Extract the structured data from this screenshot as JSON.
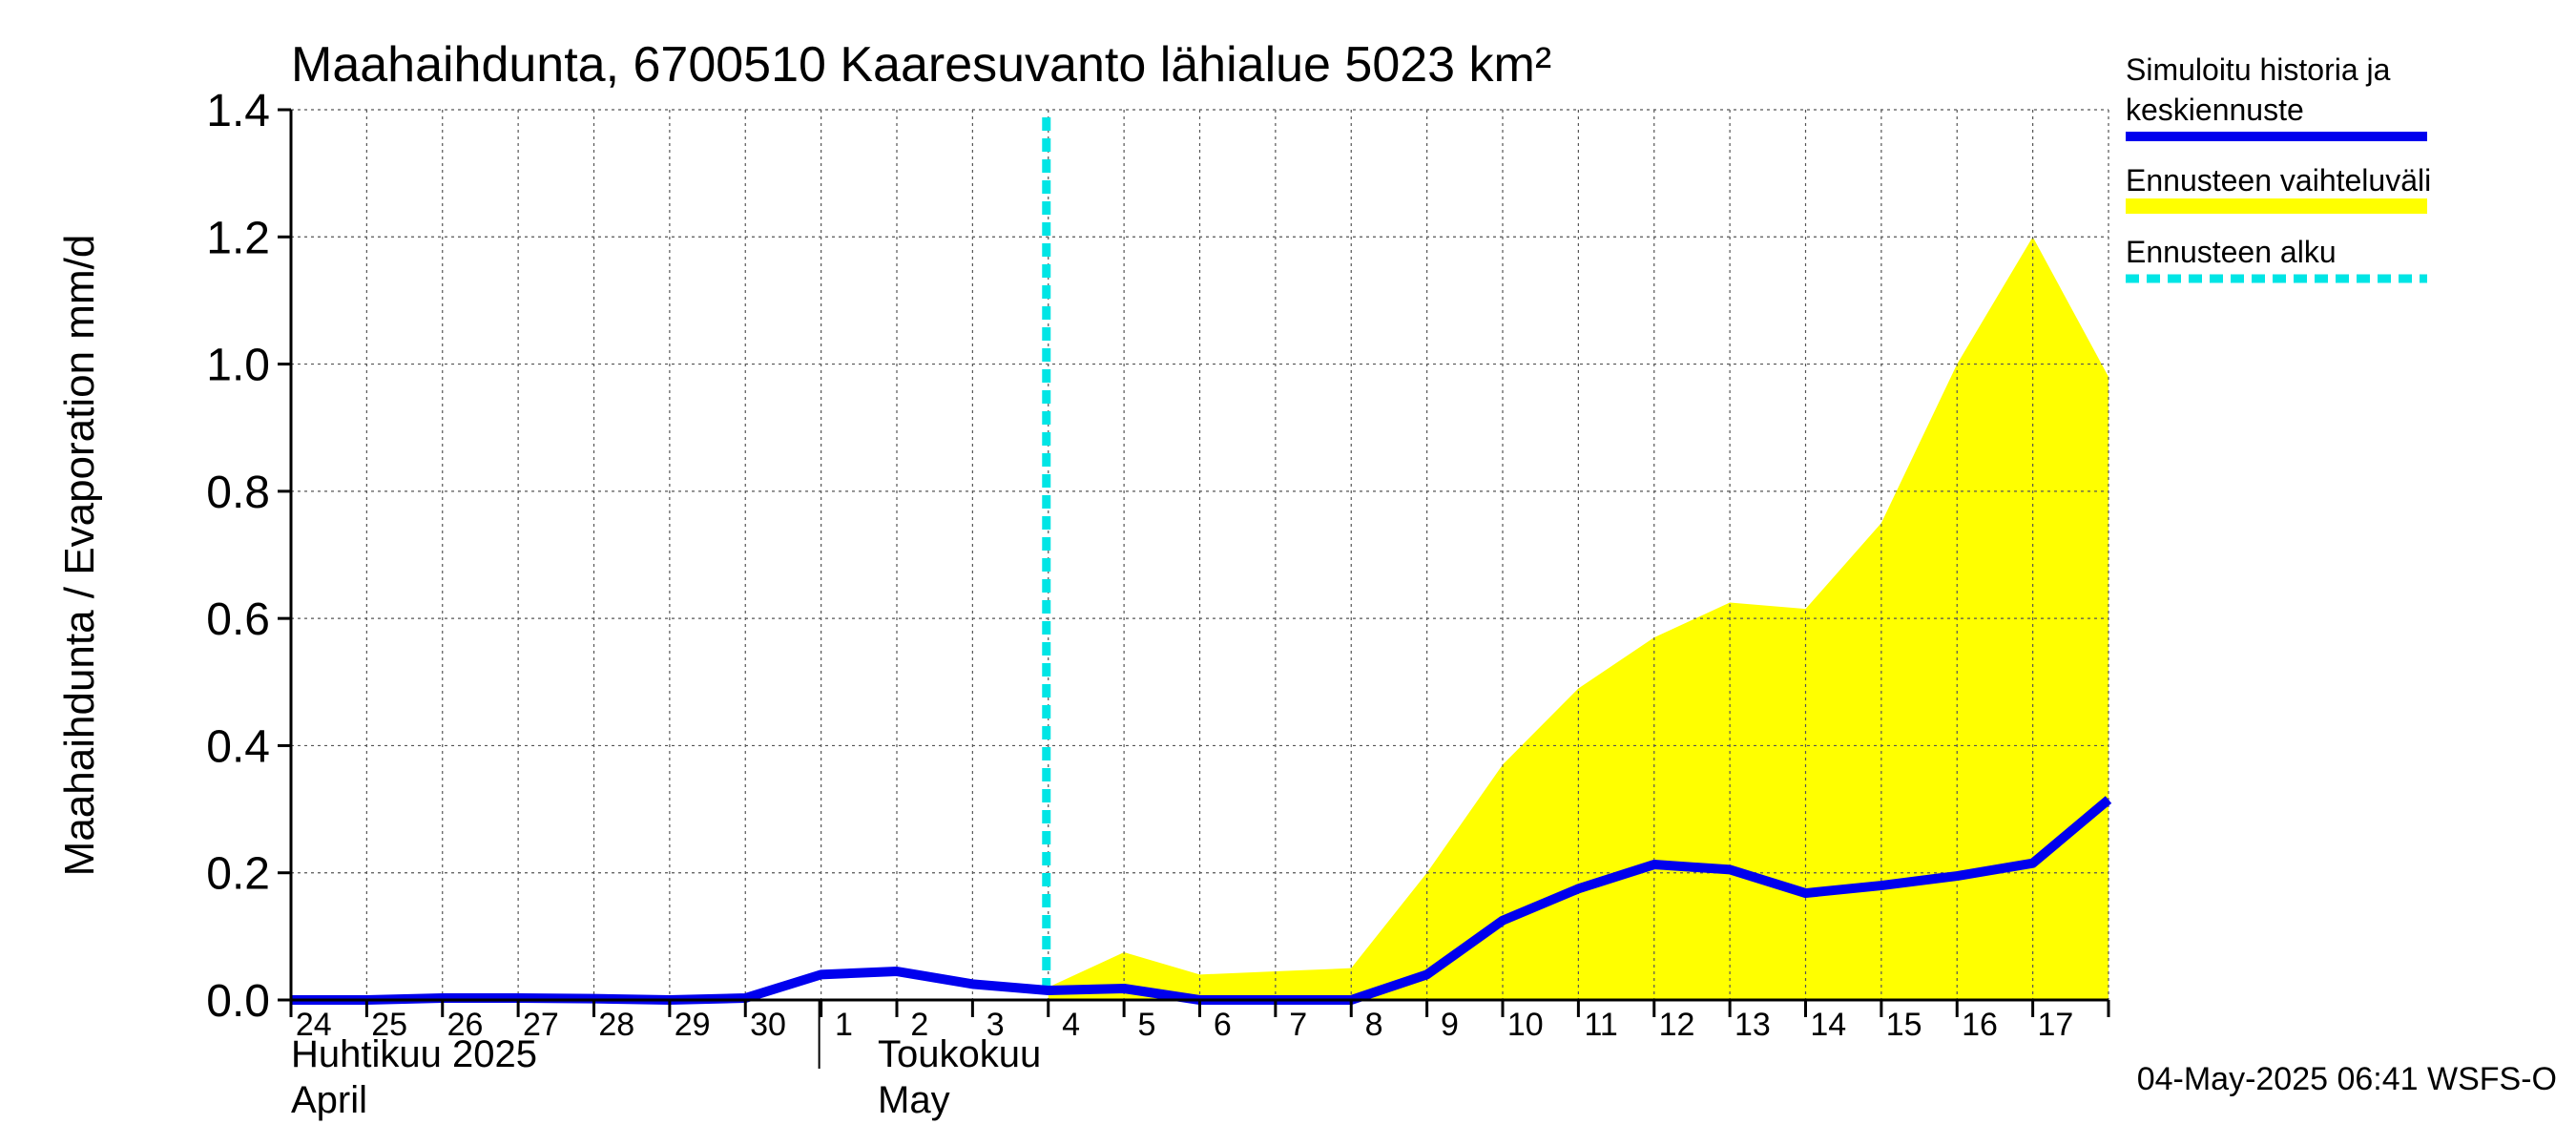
{
  "chart_data": {
    "type": "area",
    "title": "Maahaihdunta, 6700510 Kaaresuvanto lähialue 5023 km²",
    "ylabel": "Maahaihdunta / Evaporation   mm/d",
    "ylim": [
      0.0,
      1.4
    ],
    "yticks": [
      0.0,
      0.2,
      0.4,
      0.6,
      0.8,
      1.0,
      1.2,
      1.4
    ],
    "ytick_labels": [
      "0.0",
      "0.2",
      "0.4",
      "0.6",
      "0.8",
      "1.0",
      "1.2",
      "1.4"
    ],
    "grid": true,
    "x": [
      "2025-04-24",
      "2025-04-25",
      "2025-04-26",
      "2025-04-27",
      "2025-04-28",
      "2025-04-29",
      "2025-04-30",
      "2025-05-01",
      "2025-05-02",
      "2025-05-03",
      "2025-05-04",
      "2025-05-05",
      "2025-05-06",
      "2025-05-07",
      "2025-05-08",
      "2025-05-09",
      "2025-05-10",
      "2025-05-11",
      "2025-05-12",
      "2025-05-13",
      "2025-05-14",
      "2025-05-15",
      "2025-05-16",
      "2025-05-17",
      "2025-05-18"
    ],
    "xtick_labels": [
      "24",
      "25",
      "26",
      "27",
      "28",
      "29",
      "30",
      "1",
      "2",
      "3",
      "4",
      "5",
      "6",
      "7",
      "8",
      "9",
      "10",
      "11",
      "12",
      "13",
      "14",
      "15",
      "16",
      "17"
    ],
    "month_labels": [
      {
        "fi": "Huhtikuu  2025",
        "en": "April"
      },
      {
        "fi": "Toukokuu",
        "en": "May"
      }
    ],
    "series": [
      {
        "name": "Simuloitu historia ja keskiennuste",
        "color": "#0000ee",
        "values": [
          0.0,
          0.0,
          0.003,
          0.003,
          0.002,
          0.0,
          0.003,
          0.04,
          0.045,
          0.025,
          0.015,
          0.018,
          0.0,
          0.0,
          0.0,
          0.04,
          0.125,
          0.175,
          0.213,
          0.205,
          0.168,
          0.18,
          0.195,
          0.215,
          0.315
        ]
      },
      {
        "name": "Ennusteen vaihteluväli",
        "color": "#ffff00",
        "start_index": 10,
        "upper": [
          0.02,
          0.075,
          0.04,
          0.045,
          0.05,
          0.2,
          0.37,
          0.49,
          0.57,
          0.625,
          0.615,
          0.75,
          1.0,
          1.2,
          0.98
        ],
        "lower": [
          0.0,
          0.0,
          0.0,
          0.0,
          0.0,
          0.0,
          0.0,
          0.0,
          0.0,
          0.0,
          0.0,
          0.0,
          0.0,
          0.0,
          0.0
        ]
      }
    ],
    "forecast_start": "2025-05-04",
    "legend": {
      "placement": "top-right",
      "items": [
        {
          "line1": "Simuloitu historia ja",
          "line2": "keskiennuste",
          "style": "solid",
          "color": "#0000ee"
        },
        {
          "line1": "Ennusteen vaihteluväli",
          "style": "band",
          "color": "#ffff00"
        },
        {
          "line1": "Ennusteen alku",
          "style": "dashed",
          "color": "#00e5e5"
        }
      ]
    },
    "footer": "04-May-2025 06:41 WSFS-O"
  }
}
